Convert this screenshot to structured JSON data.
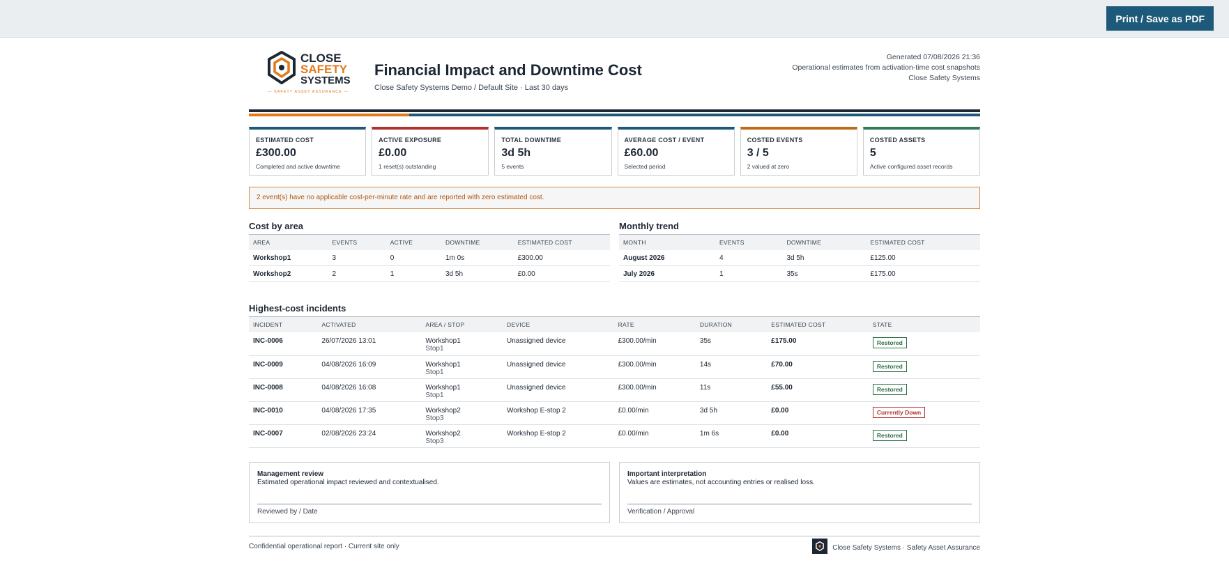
{
  "toolbar": {
    "print_label": "Print / Save as PDF"
  },
  "brand": {
    "line1": "CLOSE",
    "line2": "SAFETY",
    "line3": "SYSTEMS",
    "tagline": "SAFETY ASSET ASSURANCE"
  },
  "header": {
    "title": "Financial Impact and Downtime Cost",
    "subtitle": "Close Safety Systems Demo / Default Site · Last 30 days",
    "generated": "Generated 07/08/2026 21:36",
    "meta_line2": "Operational estimates from activation-time cost snapshots",
    "meta_line3": "Close Safety Systems"
  },
  "colors": {
    "accent": "#1d5a7a",
    "orange": "#e07a1b",
    "red": "#b0322e",
    "green": "#2c6e46",
    "dark": "#1d2733"
  },
  "kpis": [
    {
      "label": "ESTIMATED COST",
      "value": "£300.00",
      "note": "Completed and active downtime",
      "color": "#1d5a7a"
    },
    {
      "label": "ACTIVE EXPOSURE",
      "value": "£0.00",
      "note": "1 reset(s) outstanding",
      "color": "#b0322e"
    },
    {
      "label": "TOTAL DOWNTIME",
      "value": "3d 5h",
      "note": "5 events",
      "color": "#1d5a7a"
    },
    {
      "label": "AVERAGE COST / EVENT",
      "value": "£60.00",
      "note": "Selected period",
      "color": "#1d5a7a"
    },
    {
      "label": "COSTED EVENTS",
      "value": "3 / 5",
      "note": "2 valued at zero",
      "color": "#c2691a"
    },
    {
      "label": "COSTED ASSETS",
      "value": "5",
      "note": "Active configured asset records",
      "color": "#2f7a5a"
    }
  ],
  "alert": "2 event(s) have no applicable cost-per-minute rate and are reported with zero estimated cost.",
  "cost_by_area": {
    "title": "Cost by area",
    "headers": [
      "AREA",
      "EVENTS",
      "ACTIVE",
      "DOWNTIME",
      "ESTIMATED COST"
    ],
    "rows": [
      [
        "Workshop1",
        "3",
        "0",
        "1m 0s",
        "£300.00"
      ],
      [
        "Workshop2",
        "2",
        "1",
        "3d 5h",
        "£0.00"
      ]
    ]
  },
  "monthly_trend": {
    "title": "Monthly trend",
    "headers": [
      "MONTH",
      "EVENTS",
      "DOWNTIME",
      "ESTIMATED COST"
    ],
    "rows": [
      [
        "August 2026",
        "4",
        "3d 5h",
        "£125.00"
      ],
      [
        "July 2026",
        "1",
        "35s",
        "£175.00"
      ]
    ]
  },
  "incidents": {
    "title": "Highest-cost incidents",
    "headers": [
      "INCIDENT",
      "ACTIVATED",
      "AREA / STOP",
      "DEVICE",
      "RATE",
      "DURATION",
      "ESTIMATED COST",
      "STATE"
    ],
    "rows": [
      {
        "id": "INC-0006",
        "activated": "26/07/2026 13:01",
        "area": "Workshop1",
        "stop": "Stop1",
        "device": "Unassigned device",
        "rate": "£300.00/min",
        "duration": "35s",
        "cost": "£175.00",
        "state": "Restored"
      },
      {
        "id": "INC-0009",
        "activated": "04/08/2026 16:09",
        "area": "Workshop1",
        "stop": "Stop1",
        "device": "Unassigned device",
        "rate": "£300.00/min",
        "duration": "14s",
        "cost": "£70.00",
        "state": "Restored"
      },
      {
        "id": "INC-0008",
        "activated": "04/08/2026 16:08",
        "area": "Workshop1",
        "stop": "Stop1",
        "device": "Unassigned device",
        "rate": "£300.00/min",
        "duration": "11s",
        "cost": "£55.00",
        "state": "Restored"
      },
      {
        "id": "INC-0010",
        "activated": "04/08/2026 17:35",
        "area": "Workshop2",
        "stop": "Stop3",
        "device": "Workshop E-stop 2",
        "rate": "£0.00/min",
        "duration": "3d 5h",
        "cost": "£0.00",
        "state": "Currently Down"
      },
      {
        "id": "INC-0007",
        "activated": "02/08/2026 23:24",
        "area": "Workshop2",
        "stop": "Stop3",
        "device": "Workshop E-stop 2",
        "rate": "£0.00/min",
        "duration": "1m 6s",
        "cost": "£0.00",
        "state": "Restored"
      }
    ]
  },
  "review": {
    "title": "Management review",
    "text": "Estimated operational impact reviewed and contextualised.",
    "sig": "Reviewed by / Date"
  },
  "interpretation": {
    "title": "Important interpretation",
    "text": "Values are estimates, not accounting entries or realised loss.",
    "sig": "Verification / Approval"
  },
  "footer": {
    "left": "Confidential operational report · Current site only",
    "right": "Close Safety Systems · Safety Asset Assurance"
  }
}
